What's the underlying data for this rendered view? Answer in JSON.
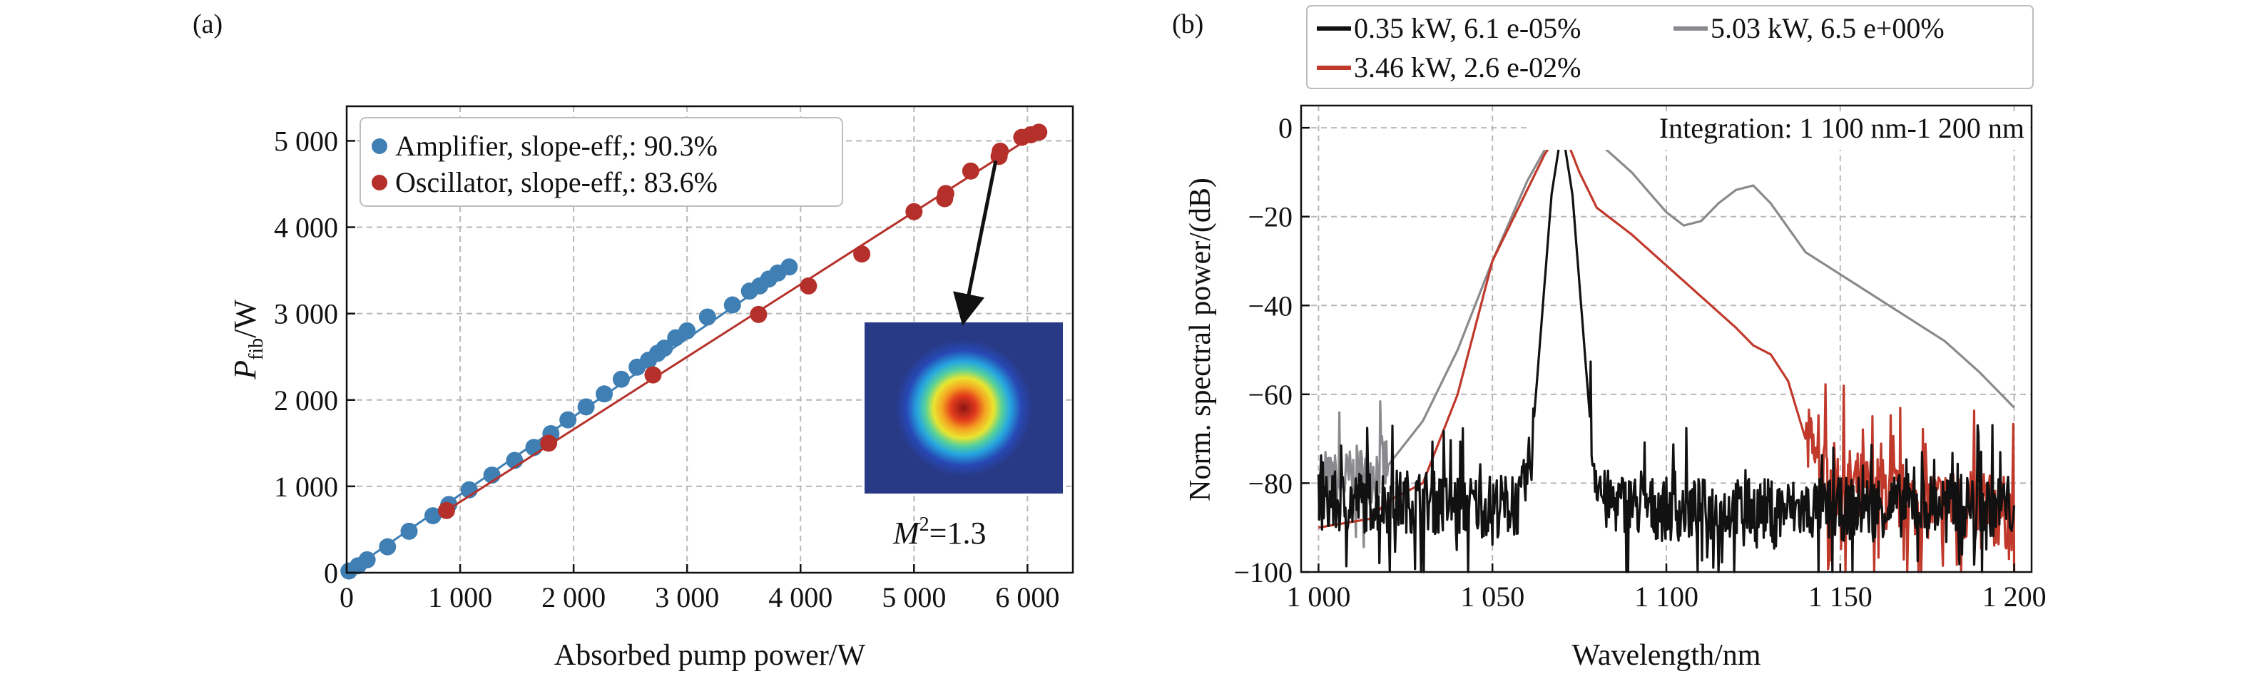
{
  "charts": [
    {
      "panel_label": "(a)",
      "chart_data": {
        "type": "scatter",
        "xlabel": "Absorbed pump power/W",
        "ylabel": "P",
        "ylabel_sub": "fib",
        "ylabel_unit": "/W",
        "xlim": [
          0,
          6400
        ],
        "ylim": [
          0,
          5400
        ],
        "xticks": [
          0,
          1000,
          2000,
          3000,
          4000,
          5000,
          6000
        ],
        "xtick_labels": [
          "0",
          "1 000",
          "2 000",
          "3 000",
          "4 000",
          "5 000",
          "6 000"
        ],
        "yticks": [
          0,
          1000,
          2000,
          3000,
          4000,
          5000
        ],
        "ytick_labels": [
          "0",
          "1 000",
          "2 000",
          "3 000",
          "4 000",
          "5 000"
        ],
        "grid": true,
        "legend_position": "top-left",
        "series": [
          {
            "name": "Amplifier, slope-eff,: 90.3%",
            "color": "#3f7fb3",
            "x": [
              20,
              100,
              180,
              360,
              550,
              760,
              900,
              1080,
              1280,
              1480,
              1650,
              1800,
              1950,
              2110,
              2270,
              2420,
              2560,
              2660,
              2740,
              2800,
              2900,
              3000,
              3180,
              3400,
              3550,
              3640,
              3720,
              3800,
              3900
            ],
            "y": [
              20,
              80,
              150,
              300,
              480,
              660,
              790,
              960,
              1130,
              1300,
              1450,
              1610,
              1770,
              1920,
              2070,
              2240,
              2380,
              2460,
              2540,
              2600,
              2720,
              2800,
              2960,
              3100,
              3260,
              3320,
              3400,
              3470,
              3540
            ],
            "fit": [
              [
                0,
                0
              ],
              [
                3950,
                3570
              ]
            ]
          },
          {
            "name": "Oscillator, slope-eff,: 83.6%",
            "color": "#b5302a",
            "x": [
              880,
              1780,
              2700,
              3630,
              4070,
              4540,
              5000,
              5270,
              5280,
              5500,
              5750,
              5760,
              5950,
              6030,
              6100
            ],
            "y": [
              720,
              1500,
              2290,
              2990,
              3320,
              3690,
              4180,
              4330,
              4390,
              4650,
              4820,
              4880,
              5040,
              5070,
              5100
            ],
            "fit": [
              [
                880,
                720
              ],
              [
                6100,
                5100
              ]
            ]
          }
        ],
        "inset": {
          "label_prefix": "M",
          "label_sup": "2",
          "label_value": "=1.3",
          "points_to": [
            5720,
            4850
          ]
        }
      }
    },
    {
      "panel_label": "(b)",
      "chart_data": {
        "type": "line",
        "xlabel": "Wavelength/nm",
        "ylabel": "Norm. spectral power/(dB)",
        "xlim": [
          995,
          1205
        ],
        "ylim": [
          -100,
          5
        ],
        "xticks": [
          1000,
          1050,
          1100,
          1150,
          1200
        ],
        "xtick_labels": [
          "1 000",
          "1 050",
          "1 100",
          "1 150",
          "1 200"
        ],
        "yticks": [
          -100,
          -80,
          -60,
          -40,
          -20,
          0
        ],
        "ytick_labels": [
          "−100",
          "−80",
          "−60",
          "−40",
          "−20",
          "0"
        ],
        "grid": true,
        "legend_position": "top, outside",
        "annotation": "Integration: 1 100 nm-1 200 nm",
        "series": [
          {
            "name": "5.03 kW, 6.5 e+00%",
            "color": "#8a8a8e",
            "x": [
              1000,
              1010,
              1020,
              1030,
              1040,
              1050,
              1060,
              1065,
              1070,
              1075,
              1080,
              1090,
              1100,
              1105,
              1110,
              1115,
              1120,
              1125,
              1130,
              1140,
              1150,
              1160,
              1170,
              1180,
              1190,
              1200
            ],
            "y": [
              -81,
              -79,
              -76,
              -66,
              -50,
              -30,
              -12,
              -5,
              0,
              -1,
              -3,
              -10,
              -19,
              -22,
              -21,
              -17,
              -14,
              -13,
              -17,
              -28,
              -33,
              -38,
              -43,
              -48,
              -55,
              -63
            ],
            "noise": {
              "x_end": 1020,
              "amplitude": 12
            }
          },
          {
            "name": "3.46 kW, 2.6 e-02%",
            "color": "#c0392b",
            "x": [
              1000,
              1015,
              1020,
              1030,
              1040,
              1050,
              1060,
              1065,
              1070,
              1075,
              1080,
              1090,
              1100,
              1110,
              1120,
              1125,
              1130,
              1135,
              1140,
              1145,
              1150,
              1160,
              1170,
              1180,
              1190,
              1200
            ],
            "y": [
              -90,
              -88,
              -84,
              -80,
              -60,
              -30,
              -14,
              -6,
              0,
              -10,
              -18,
              -24,
              -31,
              -38,
              -45,
              -49,
              -51,
              -57,
              -70,
              -78,
              -80,
              -82,
              -84,
              -85,
              -86,
              -87
            ],
            "noise": {
              "x_start": 1140,
              "amplitude": 14
            }
          },
          {
            "name": "0.35 kW, 6.1 e-05%",
            "color": "#111111",
            "x": [
              1000,
              1010,
              1020,
              1030,
              1040,
              1050,
              1058,
              1061,
              1064,
              1067,
              1070,
              1073,
              1076,
              1079,
              1082,
              1090,
              1100,
              1110,
              1120,
              1130,
              1140,
              1150,
              1160,
              1170,
              1180,
              1190,
              1200
            ],
            "y": [
              -85,
              -84,
              -84,
              -84,
              -85,
              -85,
              -85,
              -75,
              -45,
              -15,
              0,
              -15,
              -45,
              -75,
              -84,
              -85,
              -86,
              -86,
              -86,
              -86,
              -86,
              -86,
              -85,
              -85,
              -85,
              -85,
              -85
            ],
            "noise": {
              "x_end": 1062,
              "x_start": 1078,
              "amplitude": 12
            }
          }
        ]
      }
    }
  ]
}
